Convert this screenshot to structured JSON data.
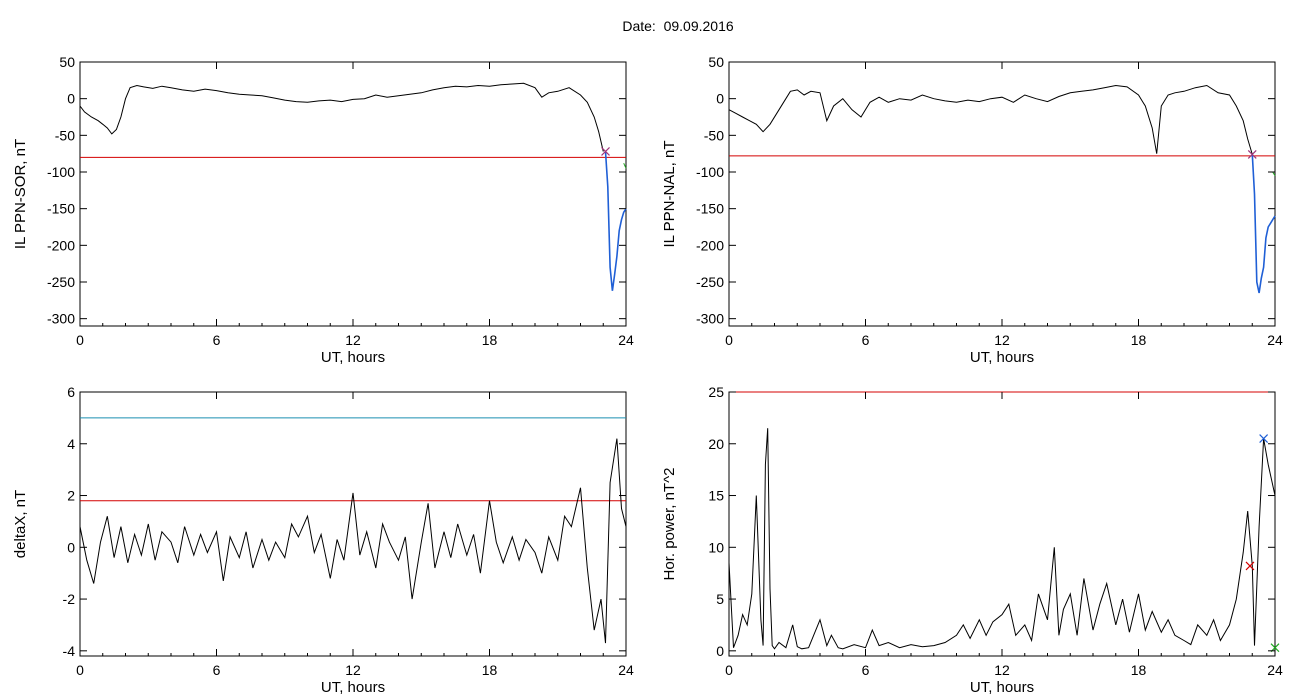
{
  "header": {
    "date_label": "Date:",
    "date_value": "09.09.2016"
  },
  "colors": {
    "data": "#000000",
    "threshold": "#d40000",
    "blue": "#1f5fd6",
    "cyan": "#1a8fb0",
    "green": "#22aa22",
    "purple": "#a0357a"
  },
  "chart_data": [
    {
      "type": "line",
      "id": "sor",
      "ylabel": "IL PPN-SOR, nT",
      "xlabel": "UT, hours",
      "xlim": [
        0,
        24
      ],
      "ylim": [
        -310,
        50
      ],
      "xticks": [
        0,
        6,
        12,
        18,
        24
      ],
      "yticks": [
        50,
        0,
        -50,
        -100,
        -150,
        -200,
        -250,
        -300
      ],
      "threshold": -80,
      "marker": {
        "x": 23.1,
        "y": -72,
        "color": "purple"
      },
      "series": [
        {
          "color": "data",
          "x": [
            0,
            0.2,
            0.5,
            0.8,
            1,
            1.2,
            1.4,
            1.6,
            1.8,
            2,
            2.2,
            2.5,
            2.8,
            3.2,
            3.6,
            4,
            4.5,
            5,
            5.5,
            6,
            6.5,
            7,
            7.5,
            8,
            8.5,
            9,
            9.5,
            10,
            10.5,
            11,
            11.5,
            12,
            12.5,
            13,
            13.5,
            14,
            14.5,
            15,
            15.5,
            16,
            16.5,
            17,
            17.5,
            18,
            18.5,
            19,
            19.5,
            20,
            20.3,
            20.6,
            21,
            21.5,
            22,
            22.3,
            22.6,
            22.8,
            23
          ],
          "y": [
            -10,
            -18,
            -25,
            -30,
            -35,
            -40,
            -48,
            -42,
            -25,
            0,
            15,
            18,
            16,
            14,
            17,
            15,
            12,
            10,
            13,
            11,
            8,
            6,
            5,
            4,
            1,
            -2,
            -4,
            -5,
            -3,
            -2,
            -4,
            -1,
            0,
            5,
            2,
            4,
            6,
            8,
            12,
            15,
            17,
            16,
            18,
            17,
            19,
            20,
            21,
            15,
            2,
            8,
            10,
            15,
            5,
            -5,
            -25,
            -45,
            -72
          ]
        },
        {
          "color": "blue",
          "x": [
            23.1,
            23.2,
            23.3,
            23.4,
            23.5,
            23.6,
            23.7,
            23.8,
            23.9,
            24
          ],
          "y": [
            -72,
            -120,
            -230,
            -262,
            -240,
            -215,
            -180,
            -165,
            -155,
            -150
          ]
        },
        {
          "color": "green",
          "x": [
            23.9,
            24
          ],
          "y": [
            -88,
            -95
          ]
        }
      ]
    },
    {
      "type": "line",
      "id": "nal",
      "ylabel": "IL PPN-NAL, nT",
      "xlabel": "UT, hours",
      "xlim": [
        0,
        24
      ],
      "ylim": [
        -310,
        50
      ],
      "xticks": [
        0,
        6,
        12,
        18,
        24
      ],
      "yticks": [
        50,
        0,
        -50,
        -100,
        -150,
        -200,
        -250,
        -300
      ],
      "threshold": -78,
      "marker": {
        "x": 23.0,
        "y": -76,
        "color": "purple"
      },
      "series": [
        {
          "color": "data",
          "x": [
            0,
            0.3,
            0.6,
            0.9,
            1.2,
            1.5,
            1.8,
            2.1,
            2.4,
            2.7,
            3,
            3.3,
            3.6,
            4,
            4.3,
            4.6,
            5,
            5.4,
            5.8,
            6.2,
            6.6,
            7,
            7.5,
            8,
            8.5,
            9,
            9.5,
            10,
            10.5,
            11,
            11.5,
            12,
            12.5,
            13,
            13.5,
            14,
            14.5,
            15,
            15.5,
            16,
            16.5,
            17,
            17.5,
            18,
            18.3,
            18.6,
            18.8,
            19,
            19.3,
            19.6,
            20,
            20.5,
            21,
            21.5,
            22,
            22.3,
            22.6,
            22.8,
            23
          ],
          "y": [
            -15,
            -20,
            -25,
            -30,
            -35,
            -45,
            -35,
            -20,
            -5,
            10,
            12,
            5,
            10,
            8,
            -30,
            -10,
            0,
            -15,
            -25,
            -5,
            2,
            -5,
            0,
            -2,
            5,
            0,
            -3,
            -5,
            -2,
            -4,
            0,
            2,
            -5,
            5,
            0,
            -4,
            3,
            8,
            10,
            12,
            15,
            18,
            16,
            5,
            -10,
            -40,
            -75,
            -10,
            5,
            8,
            10,
            15,
            18,
            8,
            5,
            -10,
            -30,
            -55,
            -76
          ]
        },
        {
          "color": "blue",
          "x": [
            23.0,
            23.1,
            23.2,
            23.3,
            23.4,
            23.5,
            23.6,
            23.7,
            23.8,
            23.9,
            24
          ],
          "y": [
            -76,
            -130,
            -250,
            -265,
            -245,
            -230,
            -190,
            -175,
            -170,
            -165,
            -160
          ]
        },
        {
          "color": "green",
          "x": [
            23.9,
            24
          ],
          "y": [
            -100,
            -105
          ]
        }
      ]
    },
    {
      "type": "line",
      "id": "deltax",
      "ylabel": "deltaX, nT",
      "xlabel": "UT, hours",
      "xlim": [
        0,
        24
      ],
      "ylim": [
        -4.2,
        6
      ],
      "xticks": [
        0,
        6,
        12,
        18,
        24
      ],
      "yticks": [
        6,
        4,
        2,
        0,
        -2,
        -4
      ],
      "threshold": 1.8,
      "threshold2": 5.0,
      "series": [
        {
          "color": "data",
          "x": [
            0,
            0.3,
            0.6,
            0.9,
            1.2,
            1.5,
            1.8,
            2.1,
            2.4,
            2.7,
            3,
            3.3,
            3.6,
            4,
            4.3,
            4.6,
            5,
            5.3,
            5.6,
            6,
            6.3,
            6.6,
            7,
            7.3,
            7.6,
            8,
            8.3,
            8.6,
            9,
            9.3,
            9.6,
            10,
            10.3,
            10.6,
            11,
            11.3,
            11.6,
            12,
            12.3,
            12.6,
            13,
            13.3,
            13.6,
            14,
            14.3,
            14.6,
            15,
            15.3,
            15.6,
            16,
            16.3,
            16.6,
            17,
            17.3,
            17.6,
            18,
            18.3,
            18.6,
            19,
            19.3,
            19.6,
            20,
            20.3,
            20.6,
            21,
            21.3,
            21.6,
            22,
            22.3,
            22.6,
            22.9,
            23.1,
            23.3,
            23.6,
            23.8,
            24
          ],
          "y": [
            0.8,
            -0.5,
            -1.4,
            0.2,
            1.2,
            -0.4,
            0.8,
            -0.6,
            0.5,
            -0.3,
            0.9,
            -0.5,
            0.6,
            0.2,
            -0.6,
            0.8,
            -0.3,
            0.5,
            -0.2,
            0.6,
            -1.3,
            0.4,
            -0.4,
            0.6,
            -0.8,
            0.3,
            -0.5,
            0.2,
            -0.4,
            0.9,
            0.4,
            1.2,
            -0.2,
            0.5,
            -1.2,
            0.3,
            -0.5,
            2.1,
            -0.3,
            0.6,
            -0.8,
            0.9,
            0.2,
            -0.5,
            0.4,
            -2.0,
            0.2,
            1.7,
            -0.8,
            0.6,
            -0.4,
            0.9,
            -0.3,
            0.5,
            -1.0,
            1.8,
            0.2,
            -0.6,
            0.4,
            -0.5,
            0.3,
            -0.2,
            -1.0,
            0.4,
            -0.5,
            1.2,
            0.8,
            2.3,
            -0.8,
            -3.2,
            -2.0,
            -3.7,
            2.5,
            4.2,
            1.5,
            0.8
          ]
        }
      ]
    },
    {
      "type": "line",
      "id": "hpower",
      "ylabel": "Hor. power, nT^2",
      "xlabel": "UT, hours",
      "xlim": [
        0,
        24
      ],
      "ylim": [
        -0.5,
        25
      ],
      "xticks": [
        0,
        6,
        12,
        18,
        24
      ],
      "yticks": [
        25,
        20,
        15,
        10,
        5,
        0
      ],
      "threshold": 25,
      "markers": [
        {
          "x": 23.5,
          "y": 20.5,
          "color": "blue"
        },
        {
          "x": 22.9,
          "y": 8.2,
          "color": "threshold"
        },
        {
          "x": 24.0,
          "y": 0.3,
          "color": "green"
        }
      ],
      "series": [
        {
          "color": "data",
          "x": [
            0,
            0.2,
            0.4,
            0.6,
            0.8,
            1,
            1.2,
            1.4,
            1.5,
            1.6,
            1.7,
            1.8,
            1.9,
            2,
            2.2,
            2.5,
            2.8,
            3,
            3.2,
            3.5,
            4,
            4.3,
            4.5,
            4.8,
            5,
            5.5,
            6,
            6.3,
            6.6,
            7,
            7.5,
            8,
            8.5,
            9,
            9.5,
            10,
            10.3,
            10.6,
            11,
            11.3,
            11.6,
            12,
            12.3,
            12.6,
            13,
            13.3,
            13.6,
            14,
            14.3,
            14.5,
            14.7,
            15,
            15.3,
            15.6,
            16,
            16.3,
            16.6,
            17,
            17.3,
            17.6,
            18,
            18.3,
            18.6,
            19,
            19.3,
            19.6,
            20,
            20.3,
            20.6,
            21,
            21.3,
            21.6,
            22,
            22.3,
            22.6,
            22.8,
            23,
            23.1,
            23.3,
            23.5,
            23.7,
            24
          ],
          "y": [
            8.5,
            0.3,
            1.5,
            3.5,
            2.5,
            5.5,
            15,
            3,
            0.5,
            18,
            21.5,
            6,
            0.5,
            0.2,
            0.8,
            0.3,
            2.5,
            0.4,
            0.2,
            0.3,
            3.0,
            0.5,
            1.5,
            0.3,
            0.2,
            0.6,
            0.3,
            2.0,
            0.5,
            0.8,
            0.3,
            0.6,
            0.4,
            0.5,
            0.8,
            1.5,
            2.5,
            1.2,
            3.0,
            1.5,
            2.8,
            3.5,
            4.5,
            1.5,
            2.5,
            1.0,
            5.5,
            3.0,
            10.0,
            1.5,
            4.0,
            5.5,
            1.5,
            7.0,
            2.0,
            4.5,
            6.5,
            2.5,
            5.0,
            1.8,
            5.5,
            2.0,
            3.8,
            1.8,
            3.0,
            1.5,
            1.0,
            0.6,
            2.5,
            1.5,
            3.0,
            1.0,
            2.5,
            5.0,
            9.5,
            13.5,
            8.2,
            0.5,
            12,
            20.5,
            18,
            15
          ]
        }
      ]
    }
  ]
}
